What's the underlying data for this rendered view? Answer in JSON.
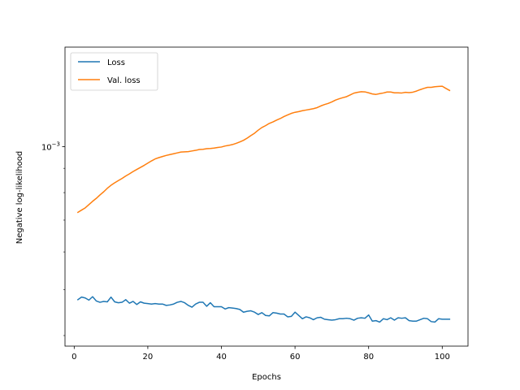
{
  "chart_data": {
    "type": "line",
    "title": "",
    "xlabel": "Epochs",
    "ylabel": "Negative log-likelihood",
    "xlim": [
      -2.5,
      107.0
    ],
    "ylim": [
      0.00038,
      0.00162
    ],
    "yscale": "log",
    "x_ticks": [
      0,
      20,
      40,
      60,
      80,
      100
    ],
    "y_tick_label": {
      "base": "10",
      "exponent": "−3",
      "value": 0.001
    },
    "grid": false,
    "legend_position": "top-left",
    "colors": {
      "Loss": "#1f77b4",
      "Val. loss": "#ff7f0e"
    },
    "series": [
      {
        "name": "Loss",
        "color": "#1f77b4",
        "x": [
          1,
          2,
          3,
          4,
          5,
          6,
          7,
          8,
          9,
          10,
          11,
          12,
          13,
          14,
          15,
          16,
          17,
          18,
          19,
          20,
          21,
          22,
          23,
          24,
          25,
          26,
          27,
          28,
          29,
          30,
          31,
          32,
          33,
          34,
          35,
          36,
          37,
          38,
          39,
          40,
          41,
          42,
          43,
          44,
          45,
          46,
          47,
          48,
          49,
          50,
          51,
          52,
          53,
          54,
          55,
          56,
          57,
          58,
          59,
          60,
          61,
          62,
          63,
          64,
          65,
          66,
          67,
          68,
          69,
          70,
          71,
          72,
          73,
          74,
          75,
          76,
          77,
          78,
          79,
          80,
          81,
          82,
          83,
          84,
          85,
          86,
          87,
          88,
          89,
          90,
          91,
          92,
          93,
          94,
          95,
          96,
          97,
          98,
          99,
          100,
          101,
          102
        ],
        "values": [
          0.000476,
          0.000482,
          0.00048,
          0.000475,
          0.000483,
          0.000473,
          0.00047,
          0.000472,
          0.000471,
          0.000482,
          0.000471,
          0.000469,
          0.00047,
          0.000476,
          0.000468,
          0.000472,
          0.000465,
          0.000471,
          0.000468,
          0.000467,
          0.000466,
          0.000467,
          0.000466,
          0.000466,
          0.000463,
          0.000464,
          0.000466,
          0.00047,
          0.000472,
          0.000469,
          0.000463,
          0.000459,
          0.000466,
          0.00047,
          0.00047,
          0.000461,
          0.000469,
          0.00046,
          0.00046,
          0.00046,
          0.000455,
          0.000458,
          0.000457,
          0.000456,
          0.000454,
          0.000448,
          0.00045,
          0.000451,
          0.000448,
          0.000443,
          0.000447,
          0.000441,
          0.00044,
          0.000447,
          0.000446,
          0.000444,
          0.000444,
          0.000438,
          0.000439,
          0.000448,
          0.000441,
          0.000434,
          0.000438,
          0.000436,
          0.000432,
          0.000436,
          0.000437,
          0.000433,
          0.000432,
          0.000431,
          0.000432,
          0.000434,
          0.000434,
          0.000435,
          0.000434,
          0.000431,
          0.000435,
          0.000436,
          0.000435,
          0.000442,
          0.000429,
          0.00043,
          0.000427,
          0.000434,
          0.000432,
          0.000436,
          0.000431,
          0.000436,
          0.000435,
          0.000436,
          0.00043,
          0.000429,
          0.000429,
          0.000432,
          0.000435,
          0.000434,
          0.000428,
          0.000427,
          0.000434,
          0.000433,
          0.000433,
          0.000433
        ]
      },
      {
        "name": "Val. loss",
        "color": "#ff7f0e",
        "x": [
          1,
          2,
          3,
          4,
          5,
          6,
          7,
          8,
          9,
          10,
          11,
          12,
          13,
          14,
          15,
          16,
          17,
          18,
          19,
          20,
          21,
          22,
          23,
          24,
          25,
          26,
          27,
          28,
          29,
          30,
          31,
          32,
          33,
          34,
          35,
          36,
          37,
          38,
          39,
          40,
          41,
          42,
          43,
          44,
          45,
          46,
          47,
          48,
          49,
          50,
          51,
          52,
          53,
          54,
          55,
          56,
          57,
          58,
          59,
          60,
          61,
          62,
          63,
          64,
          65,
          66,
          67,
          68,
          69,
          70,
          71,
          72,
          73,
          74,
          75,
          76,
          77,
          78,
          79,
          80,
          81,
          82,
          83,
          84,
          85,
          86,
          87,
          88,
          89,
          90,
          91,
          92,
          93,
          94,
          95,
          96,
          97,
          98,
          99,
          100,
          101,
          102
        ],
        "values": [
          0.000727,
          0.000735,
          0.000743,
          0.000755,
          0.000767,
          0.000778,
          0.000791,
          0.000803,
          0.000817,
          0.000829,
          0.000839,
          0.000848,
          0.000857,
          0.000867,
          0.000876,
          0.000886,
          0.000895,
          0.000904,
          0.000913,
          0.000923,
          0.000933,
          0.000942,
          0.000948,
          0.000953,
          0.000958,
          0.000962,
          0.000966,
          0.00097,
          0.000974,
          0.000975,
          0.000976,
          0.000979,
          0.000982,
          0.000986,
          0.000987,
          0.00099,
          0.000991,
          0.000993,
          0.000996,
          0.000998,
          0.001003,
          0.001006,
          0.00101,
          0.001016,
          0.001023,
          0.001031,
          0.001042,
          0.001055,
          0.001067,
          0.001083,
          0.001097,
          0.001107,
          0.001119,
          0.001127,
          0.001137,
          0.001146,
          0.001157,
          0.001166,
          0.001175,
          0.001181,
          0.001185,
          0.00119,
          0.001194,
          0.001198,
          0.001202,
          0.001208,
          0.001218,
          0.001226,
          0.001233,
          0.001242,
          0.001253,
          0.001261,
          0.001268,
          0.001274,
          0.001285,
          0.001296,
          0.001301,
          0.001305,
          0.001304,
          0.001298,
          0.001291,
          0.001288,
          0.001293,
          0.001297,
          0.001303,
          0.001303,
          0.001298,
          0.001298,
          0.001297,
          0.001301,
          0.001299,
          0.001302,
          0.001309,
          0.001318,
          0.001326,
          0.001333,
          0.001333,
          0.001337,
          0.001339,
          0.00134,
          0.001326,
          0.001313
        ]
      }
    ]
  }
}
